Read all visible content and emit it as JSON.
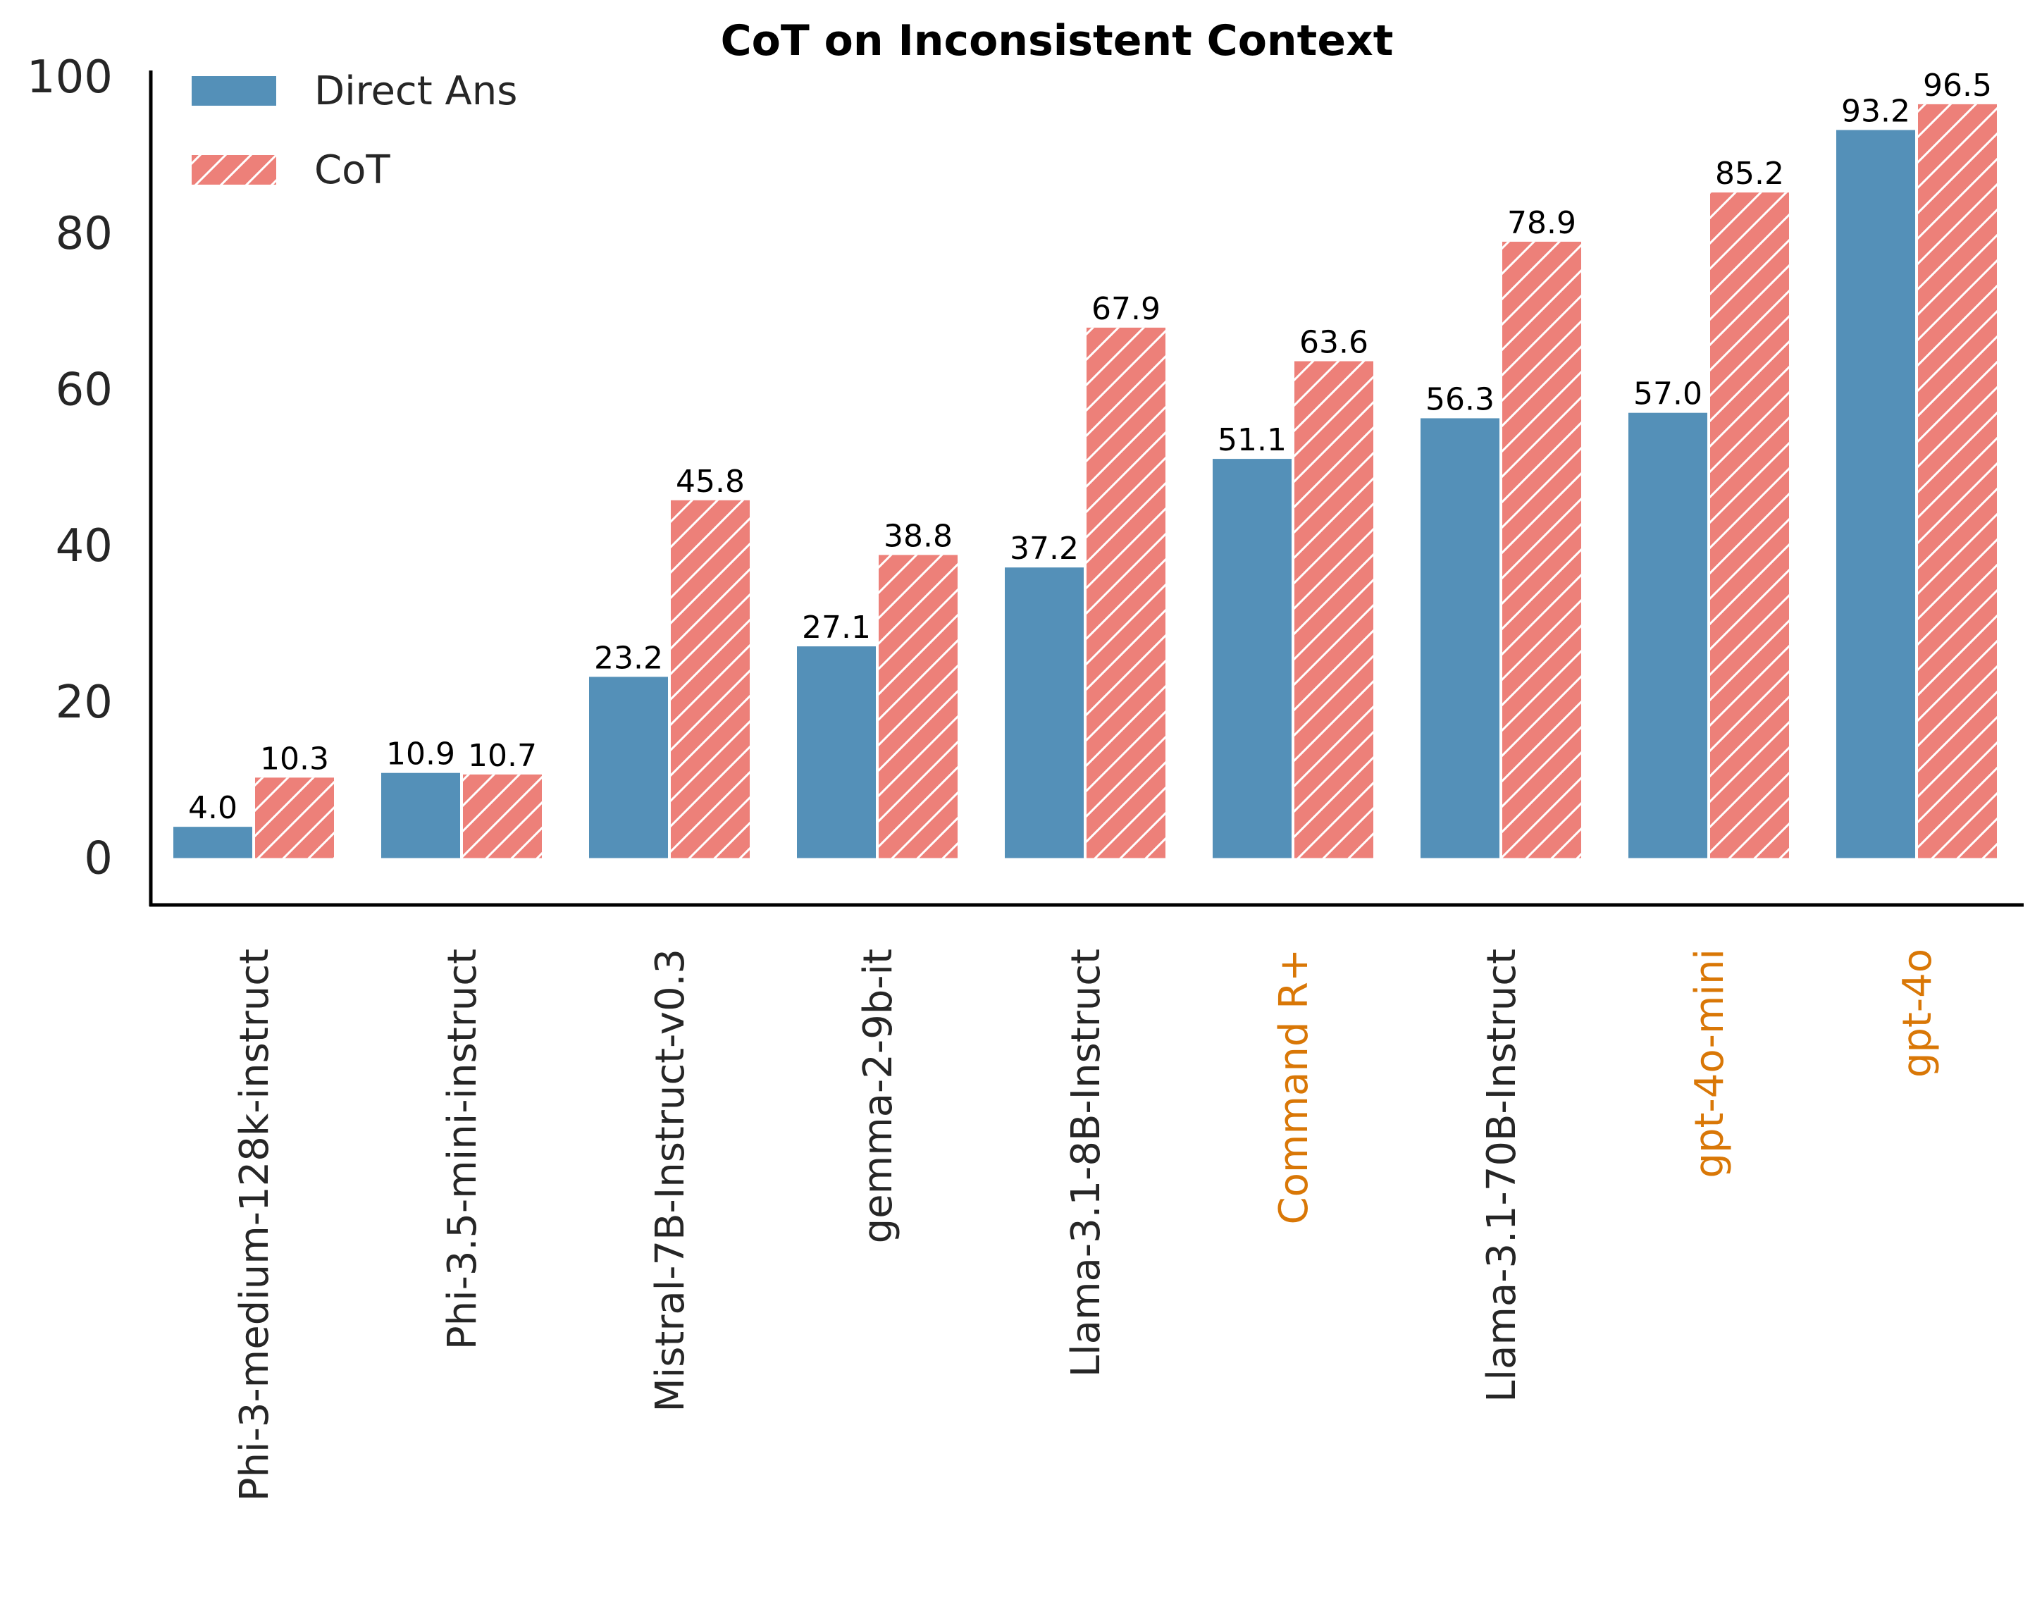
{
  "chart_data": {
    "type": "bar",
    "title": "CoT on Inconsistent Context",
    "xlabel": "",
    "ylabel": "",
    "ylim": [
      -6,
      101
    ],
    "yticks": [
      0,
      20,
      40,
      60,
      80,
      100
    ],
    "categories": [
      "Phi-3-medium-128k-instruct",
      "Phi-3.5-mini-instruct",
      "Mistral-7B-Instruct-v0.3",
      "gemma-2-9b-it",
      "Llama-3.1-8B-Instruct",
      "Command R+",
      "Llama-3.1-70B-Instruct",
      "gpt-4o-mini",
      "gpt-4o"
    ],
    "category_colors": [
      "#262626",
      "#262626",
      "#262626",
      "#262626",
      "#262626",
      "#d97706",
      "#262626",
      "#d97706",
      "#d97706"
    ],
    "series": [
      {
        "name": "Direct Ans",
        "color": "#5490b8",
        "hatch": false,
        "values": [
          4.0,
          10.9,
          23.2,
          27.1,
          37.2,
          51.1,
          56.3,
          57.0,
          93.2
        ],
        "labels": [
          "4.0",
          "10.9",
          "23.2",
          "27.1",
          "37.2",
          "51.1",
          "56.3",
          "57.0",
          "93.2"
        ]
      },
      {
        "name": "CoT",
        "color": "#ed8079",
        "hatch": true,
        "values": [
          10.3,
          10.7,
          45.8,
          38.8,
          67.9,
          63.6,
          78.9,
          85.2,
          96.5
        ],
        "labels": [
          "10.3",
          "10.7",
          "45.8",
          "38.8",
          "67.9",
          "63.6",
          "78.9",
          "85.2",
          "96.5"
        ]
      }
    ],
    "legend": {
      "position": "top-left"
    },
    "grid": false
  }
}
